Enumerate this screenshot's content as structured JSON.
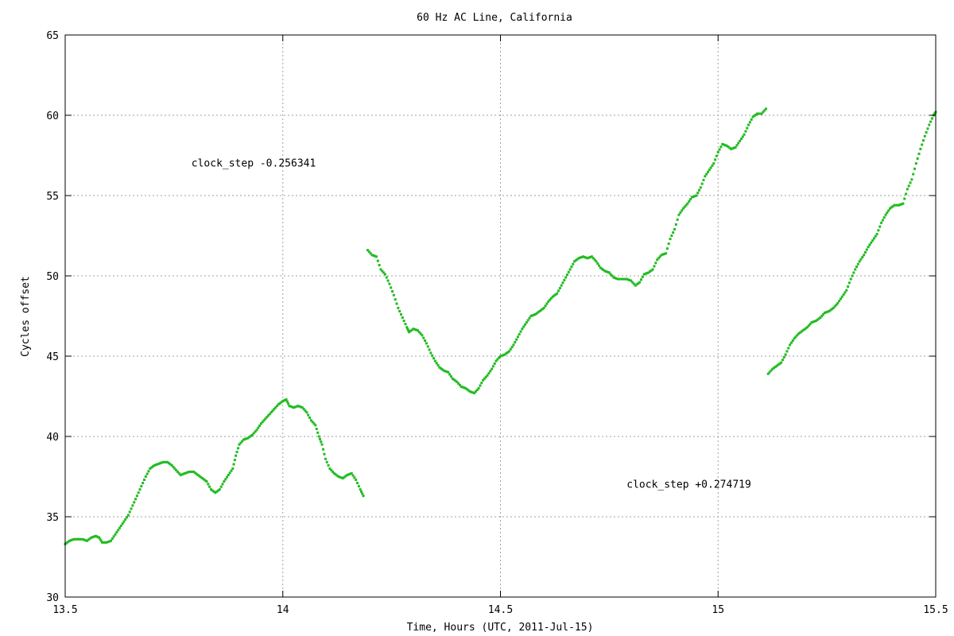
{
  "chart_data": {
    "type": "scatter",
    "title": "60 Hz AC Line, California",
    "xlabel": "Time, Hours (UTC, 2011-Jul-15)",
    "ylabel": "Cycles offset",
    "xlim": [
      13.5,
      15.5
    ],
    "ylim": [
      30,
      65
    ],
    "x_ticks": [
      13.5,
      14,
      14.5,
      15,
      15.5
    ],
    "x_tick_labels": [
      "13.5",
      "14",
      "14.5",
      "15",
      "15.5"
    ],
    "y_ticks": [
      30,
      35,
      40,
      45,
      50,
      55,
      60,
      65
    ],
    "y_tick_labels": [
      "30",
      "35",
      "40",
      "45",
      "50",
      "55",
      "60",
      "65"
    ],
    "grid": true,
    "legend": "none",
    "series_color": "#22bb22",
    "annotations": [
      {
        "text": "clock_step -0.256341",
        "x": 13.79,
        "y": 56.8
      },
      {
        "text": "clock_step +0.274719",
        "x": 14.79,
        "y": 36.8
      }
    ],
    "series": [
      {
        "points": [
          [
            13.5,
            33.3
          ],
          [
            13.51,
            33.5
          ],
          [
            13.52,
            33.6
          ],
          [
            13.53,
            33.6
          ],
          [
            13.54,
            33.6
          ],
          [
            13.55,
            33.5
          ],
          [
            13.56,
            33.7
          ],
          [
            13.57,
            33.8
          ],
          [
            13.578,
            33.7
          ],
          [
            13.585,
            33.4
          ],
          [
            13.595,
            33.4
          ],
          [
            13.605,
            33.5
          ],
          [
            13.615,
            33.9
          ],
          [
            13.625,
            34.3
          ],
          [
            13.635,
            34.7
          ],
          [
            13.645,
            35.1
          ],
          [
            13.655,
            35.7
          ],
          [
            13.665,
            36.3
          ],
          [
            13.675,
            36.9
          ],
          [
            13.685,
            37.5
          ],
          [
            13.695,
            38.0
          ],
          [
            13.705,
            38.2
          ],
          [
            13.715,
            38.3
          ],
          [
            13.725,
            38.4
          ],
          [
            13.735,
            38.4
          ],
          [
            13.745,
            38.2
          ],
          [
            13.755,
            37.9
          ],
          [
            13.765,
            37.6
          ],
          [
            13.775,
            37.7
          ],
          [
            13.785,
            37.8
          ],
          [
            13.795,
            37.8
          ],
          [
            13.805,
            37.6
          ],
          [
            13.815,
            37.4
          ],
          [
            13.825,
            37.2
          ],
          [
            13.835,
            36.7
          ],
          [
            13.845,
            36.5
          ],
          [
            13.855,
            36.7
          ],
          [
            13.865,
            37.2
          ],
          [
            13.875,
            37.6
          ],
          [
            13.885,
            38.0
          ],
          [
            13.892,
            38.8
          ],
          [
            13.9,
            39.5
          ],
          [
            13.91,
            39.8
          ],
          [
            13.92,
            39.9
          ],
          [
            13.93,
            40.1
          ],
          [
            13.94,
            40.4
          ],
          [
            13.95,
            40.8
          ],
          [
            13.96,
            41.1
          ],
          [
            13.97,
            41.4
          ],
          [
            13.98,
            41.7
          ],
          [
            13.99,
            42.0
          ],
          [
            14.0,
            42.2
          ],
          [
            14.008,
            42.3
          ],
          [
            14.015,
            41.9
          ],
          [
            14.025,
            41.8
          ],
          [
            14.035,
            41.9
          ],
          [
            14.045,
            41.8
          ],
          [
            14.055,
            41.5
          ],
          [
            14.065,
            41.0
          ],
          [
            14.075,
            40.7
          ],
          [
            14.083,
            40.0
          ],
          [
            14.09,
            39.5
          ],
          [
            14.098,
            38.6
          ],
          [
            14.108,
            38.0
          ],
          [
            14.118,
            37.7
          ],
          [
            14.128,
            37.5
          ],
          [
            14.138,
            37.4
          ],
          [
            14.148,
            37.6
          ],
          [
            14.158,
            37.7
          ],
          [
            14.168,
            37.3
          ],
          [
            14.178,
            36.7
          ],
          [
            14.185,
            36.3
          ],
          [
            14.195,
            51.6
          ],
          [
            14.205,
            51.3
          ],
          [
            14.215,
            51.2
          ],
          [
            14.225,
            50.4
          ],
          [
            14.235,
            50.1
          ],
          [
            14.245,
            49.5
          ],
          [
            14.255,
            48.8
          ],
          [
            14.265,
            48.0
          ],
          [
            14.275,
            47.4
          ],
          [
            14.285,
            46.8
          ],
          [
            14.29,
            46.5
          ],
          [
            14.3,
            46.7
          ],
          [
            14.31,
            46.6
          ],
          [
            14.32,
            46.3
          ],
          [
            14.33,
            45.8
          ],
          [
            14.34,
            45.2
          ],
          [
            14.35,
            44.7
          ],
          [
            14.36,
            44.3
          ],
          [
            14.37,
            44.1
          ],
          [
            14.38,
            44.0
          ],
          [
            14.39,
            43.6
          ],
          [
            14.4,
            43.4
          ],
          [
            14.41,
            43.1
          ],
          [
            14.42,
            43.0
          ],
          [
            14.43,
            42.8
          ],
          [
            14.44,
            42.7
          ],
          [
            14.45,
            43.0
          ],
          [
            14.46,
            43.5
          ],
          [
            14.47,
            43.8
          ],
          [
            14.48,
            44.2
          ],
          [
            14.49,
            44.7
          ],
          [
            14.5,
            45.0
          ],
          [
            14.51,
            45.1
          ],
          [
            14.52,
            45.3
          ],
          [
            14.53,
            45.7
          ],
          [
            14.54,
            46.2
          ],
          [
            14.55,
            46.7
          ],
          [
            14.56,
            47.1
          ],
          [
            14.57,
            47.5
          ],
          [
            14.58,
            47.6
          ],
          [
            14.59,
            47.8
          ],
          [
            14.6,
            48.0
          ],
          [
            14.61,
            48.4
          ],
          [
            14.62,
            48.7
          ],
          [
            14.63,
            48.9
          ],
          [
            14.64,
            49.4
          ],
          [
            14.65,
            49.9
          ],
          [
            14.66,
            50.4
          ],
          [
            14.67,
            50.9
          ],
          [
            14.68,
            51.1
          ],
          [
            14.69,
            51.2
          ],
          [
            14.7,
            51.1
          ],
          [
            14.71,
            51.2
          ],
          [
            14.72,
            50.9
          ],
          [
            14.73,
            50.5
          ],
          [
            14.74,
            50.3
          ],
          [
            14.75,
            50.2
          ],
          [
            14.76,
            49.9
          ],
          [
            14.77,
            49.8
          ],
          [
            14.78,
            49.8
          ],
          [
            14.79,
            49.8
          ],
          [
            14.8,
            49.7
          ],
          [
            14.81,
            49.4
          ],
          [
            14.82,
            49.6
          ],
          [
            14.83,
            50.1
          ],
          [
            14.84,
            50.2
          ],
          [
            14.85,
            50.4
          ],
          [
            14.86,
            51.0
          ],
          [
            14.87,
            51.3
          ],
          [
            14.88,
            51.4
          ],
          [
            14.89,
            52.3
          ],
          [
            14.9,
            52.9
          ],
          [
            14.91,
            53.8
          ],
          [
            14.92,
            54.2
          ],
          [
            14.93,
            54.5
          ],
          [
            14.94,
            54.9
          ],
          [
            14.95,
            55.0
          ],
          [
            14.96,
            55.5
          ],
          [
            14.97,
            56.2
          ],
          [
            14.98,
            56.6
          ],
          [
            14.99,
            57.0
          ],
          [
            15.0,
            57.7
          ],
          [
            15.01,
            58.2
          ],
          [
            15.02,
            58.1
          ],
          [
            15.03,
            57.9
          ],
          [
            15.04,
            58.0
          ],
          [
            15.05,
            58.4
          ],
          [
            15.06,
            58.8
          ],
          [
            15.07,
            59.4
          ],
          [
            15.08,
            59.9
          ],
          [
            15.09,
            60.1
          ],
          [
            15.1,
            60.1
          ],
          [
            15.11,
            60.4
          ],
          [
            15.115,
            43.9
          ],
          [
            15.125,
            44.2
          ],
          [
            15.135,
            44.4
          ],
          [
            15.145,
            44.6
          ],
          [
            15.155,
            45.1
          ],
          [
            15.165,
            45.7
          ],
          [
            15.175,
            46.1
          ],
          [
            15.185,
            46.4
          ],
          [
            15.195,
            46.6
          ],
          [
            15.205,
            46.8
          ],
          [
            15.215,
            47.1
          ],
          [
            15.225,
            47.2
          ],
          [
            15.235,
            47.4
          ],
          [
            15.245,
            47.7
          ],
          [
            15.255,
            47.8
          ],
          [
            15.265,
            48.0
          ],
          [
            15.275,
            48.3
          ],
          [
            15.285,
            48.7
          ],
          [
            15.295,
            49.1
          ],
          [
            15.305,
            49.8
          ],
          [
            15.315,
            50.4
          ],
          [
            15.325,
            50.9
          ],
          [
            15.335,
            51.3
          ],
          [
            15.345,
            51.8
          ],
          [
            15.355,
            52.2
          ],
          [
            15.365,
            52.6
          ],
          [
            15.375,
            53.3
          ],
          [
            15.385,
            53.8
          ],
          [
            15.395,
            54.2
          ],
          [
            15.405,
            54.4
          ],
          [
            15.415,
            54.4
          ],
          [
            15.425,
            54.5
          ],
          [
            15.435,
            55.4
          ],
          [
            15.445,
            56.0
          ],
          [
            15.455,
            57.0
          ],
          [
            15.465,
            57.9
          ],
          [
            15.475,
            58.7
          ],
          [
            15.485,
            59.4
          ],
          [
            15.495,
            60.0
          ],
          [
            15.5,
            60.2
          ]
        ]
      }
    ]
  }
}
